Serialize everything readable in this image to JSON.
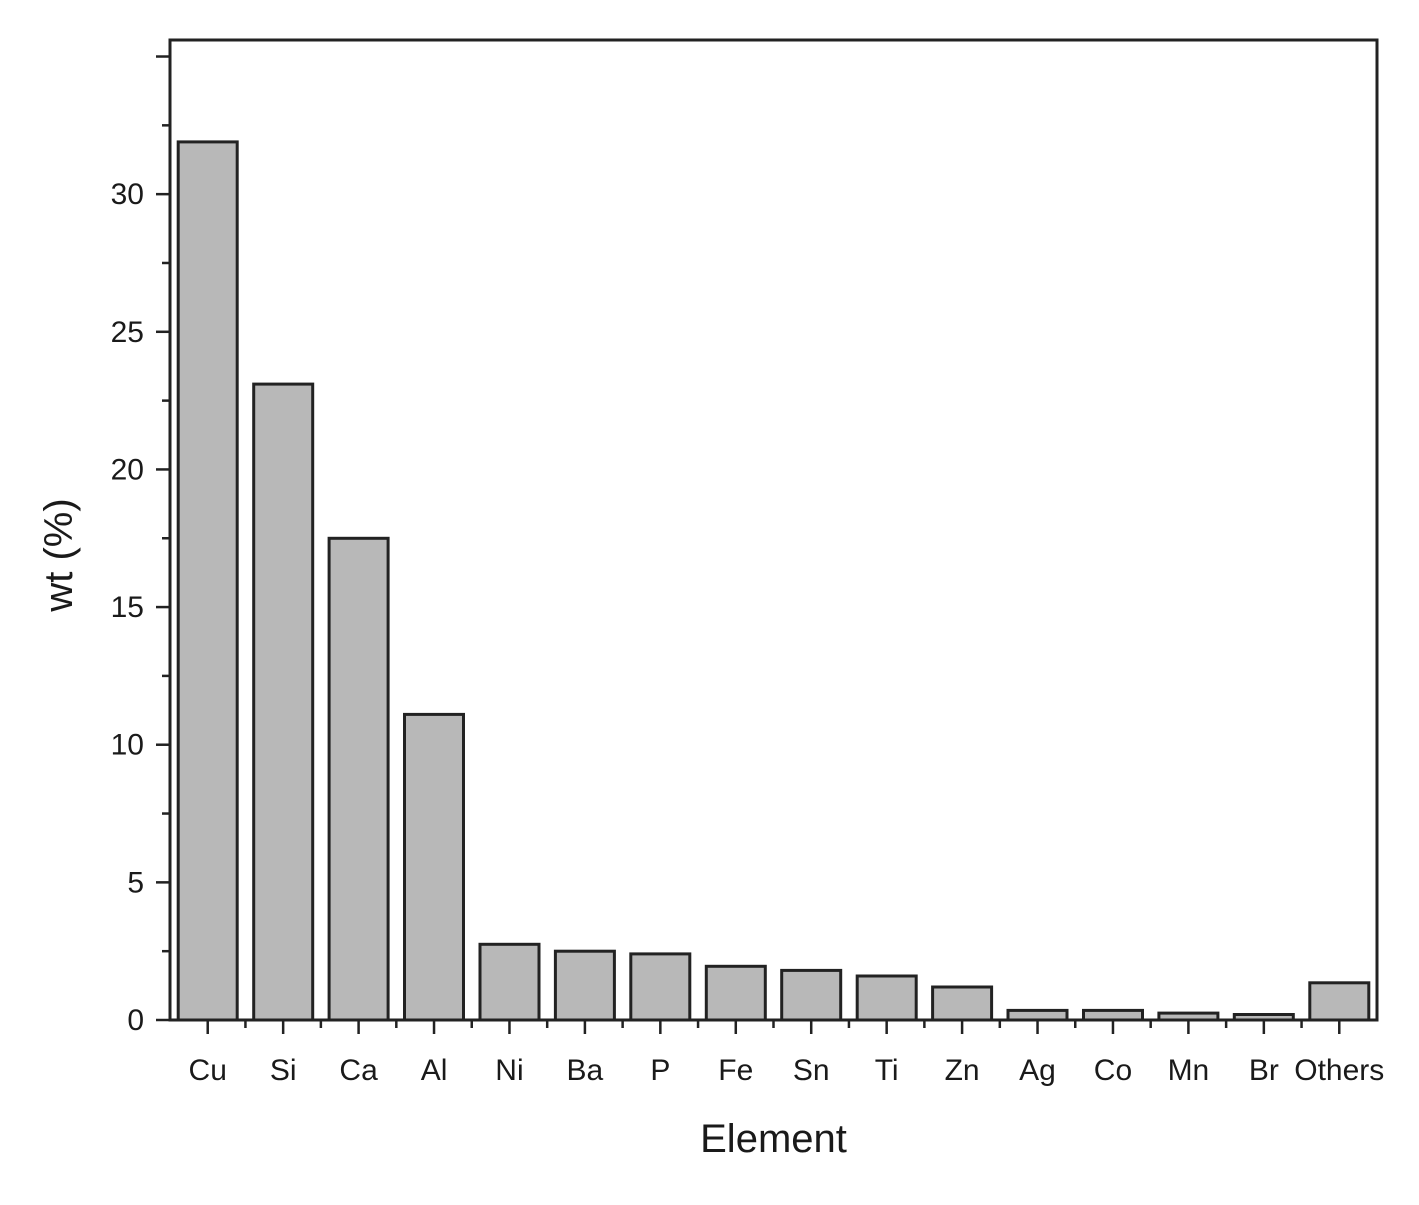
{
  "chart_data": {
    "type": "bar",
    "categories": [
      "Cu",
      "Si",
      "Ca",
      "Al",
      "Ni",
      "Ba",
      "P",
      "Fe",
      "Sn",
      "Ti",
      "Zn",
      "Ag",
      "Co",
      "Mn",
      "Br",
      "Others"
    ],
    "values": [
      31.9,
      23.1,
      17.5,
      11.1,
      2.75,
      2.5,
      2.4,
      1.95,
      1.8,
      1.6,
      1.2,
      0.35,
      0.35,
      0.25,
      0.2,
      1.35
    ],
    "title": "",
    "xlabel": "Element",
    "ylabel": "wt (%)",
    "ylim": [
      0,
      35.6
    ],
    "yticks": [
      0,
      5,
      10,
      15,
      20,
      25,
      30
    ],
    "ytick_labels": [
      "0",
      "5",
      "10",
      "15",
      "20",
      "25",
      "30"
    ],
    "grid": false,
    "legend": "none",
    "colors": {
      "bar_fill": "#b8b8b8",
      "bar_edge": "#222222"
    }
  }
}
